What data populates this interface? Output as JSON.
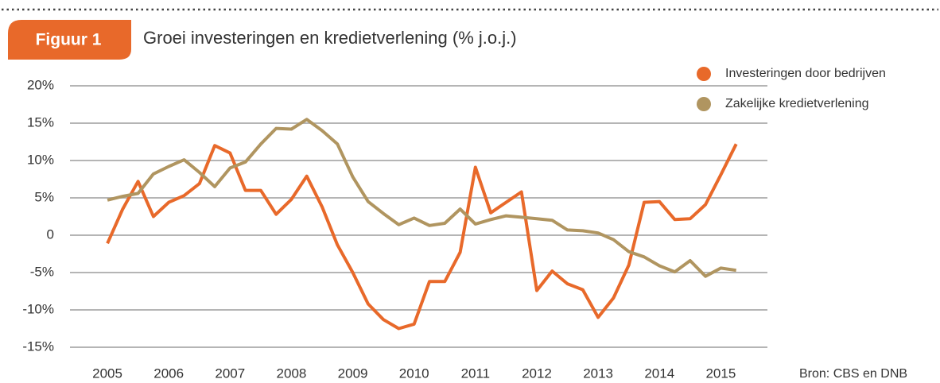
{
  "chart_data": {
    "type": "line",
    "badge": "Figuur 1",
    "title": "Groei investeringen en kredietverlening (% j.o.j.)",
    "source": "Bron: CBS en DNB",
    "x": [
      2005,
      2005.25,
      2005.5,
      2005.75,
      2006,
      2006.25,
      2006.5,
      2006.75,
      2007,
      2007.25,
      2007.5,
      2007.75,
      2008,
      2008.25,
      2008.5,
      2008.75,
      2009,
      2009.25,
      2009.5,
      2009.75,
      2010,
      2010.25,
      2010.5,
      2010.75,
      2011,
      2011.25,
      2011.5,
      2011.75,
      2012,
      2012.25,
      2012.5,
      2012.75,
      2013,
      2013.25,
      2013.5,
      2013.75,
      2014,
      2014.25,
      2014.5,
      2014.75,
      2015,
      2015.25
    ],
    "series": [
      {
        "name": "Investeringen door bedrijven",
        "color": "#e8692a",
        "values": [
          -1.1,
          3.5,
          7.2,
          2.5,
          4.4,
          5.3,
          6.9,
          12.0,
          11.0,
          6.0,
          6.0,
          2.8,
          4.8,
          7.9,
          3.8,
          -1.3,
          -5.0,
          -9.2,
          -11.3,
          -12.5,
          -11.9,
          -6.2,
          -6.2,
          -2.3,
          9.1,
          3.0,
          4.4,
          5.8,
          -7.4,
          -4.8,
          -6.5,
          -7.3,
          -11.0,
          -8.4,
          -4.0,
          4.4,
          4.5,
          2.1,
          2.2,
          4.1,
          8.1,
          12.2
        ]
      },
      {
        "name": "Zakelijke kredietverlening",
        "color": "#b09560",
        "values": [
          4.7,
          5.2,
          5.6,
          8.2,
          9.2,
          10.1,
          8.4,
          6.5,
          9.0,
          9.8,
          12.2,
          14.3,
          14.2,
          15.5,
          14.0,
          12.2,
          7.8,
          4.5,
          2.9,
          1.4,
          2.3,
          1.3,
          1.6,
          3.5,
          1.5,
          2.1,
          2.6,
          2.4,
          2.2,
          2.0,
          0.7,
          0.6,
          0.3,
          -0.6,
          -2.2,
          -2.9,
          -4.1,
          -4.9,
          -3.4,
          -5.5,
          -4.4,
          -4.7
        ]
      }
    ],
    "xlim": [
      2004.39,
      2015.76
    ],
    "xticks": [
      2005,
      2006,
      2007,
      2008,
      2009,
      2010,
      2011,
      2012,
      2013,
      2014,
      2015
    ],
    "ylim": [
      -15,
      20
    ],
    "yticks": [
      {
        "value": -15,
        "label": "-15%"
      },
      {
        "value": -10,
        "label": "-10%"
      },
      {
        "value": -5,
        "label": "-5%"
      },
      0,
      {
        "value": 5,
        "label": "5%"
      },
      {
        "value": 10,
        "label": "10%"
      },
      {
        "value": 15,
        "label": "15%"
      },
      {
        "value": 20,
        "label": "20%"
      }
    ],
    "grid": true,
    "legend": "top-right"
  }
}
